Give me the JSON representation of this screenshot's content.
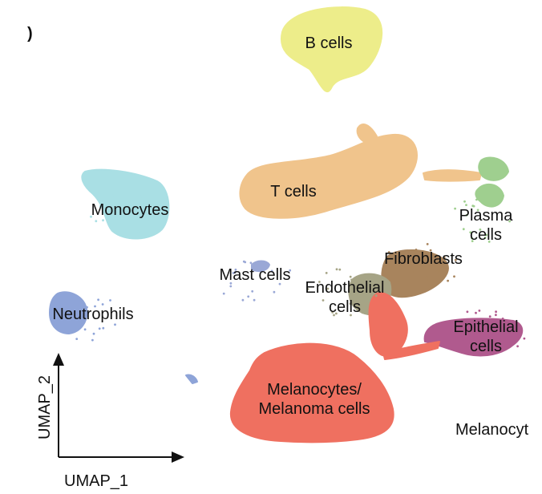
{
  "panel_mark": ")",
  "chart_data": {
    "type": "scatter",
    "xlabel": "UMAP_1",
    "ylabel": "UMAP_2",
    "grid": false,
    "legend": "none",
    "cut_off_label": "Melanocyt",
    "clusters": [
      {
        "name": "B cells",
        "color": "#eded8a",
        "label_lines": [
          "B cells"
        ]
      },
      {
        "name": "T cells",
        "color": "#f0c48c",
        "label_lines": [
          "T cells"
        ]
      },
      {
        "name": "Monocytes",
        "color": "#a9dfe4",
        "label_lines": [
          "Monocytes"
        ]
      },
      {
        "name": "Plasma cells",
        "color": "#9fcf8f",
        "label_lines": [
          "Plasma",
          "cells"
        ]
      },
      {
        "name": "Fibroblasts",
        "color": "#a8845d",
        "label_lines": [
          "Fibroblasts"
        ]
      },
      {
        "name": "Mast cells",
        "color": "#9aa8d6",
        "label_lines": [
          "Mast cells"
        ]
      },
      {
        "name": "Endothelial cells",
        "color": "#a6a486",
        "label_lines": [
          "Endothelial",
          "cells"
        ]
      },
      {
        "name": "Neutrophils",
        "color": "#8ea4d8",
        "label_lines": [
          "Neutrophils"
        ]
      },
      {
        "name": "Epithelial cells",
        "color": "#b05a8e",
        "label_lines": [
          "Epithelial",
          "cells"
        ]
      },
      {
        "name": "Melanocytes/Melanoma cells",
        "color": "#ef7060",
        "label_lines": [
          "Melanocytes/",
          "Melanoma cells"
        ]
      }
    ]
  }
}
